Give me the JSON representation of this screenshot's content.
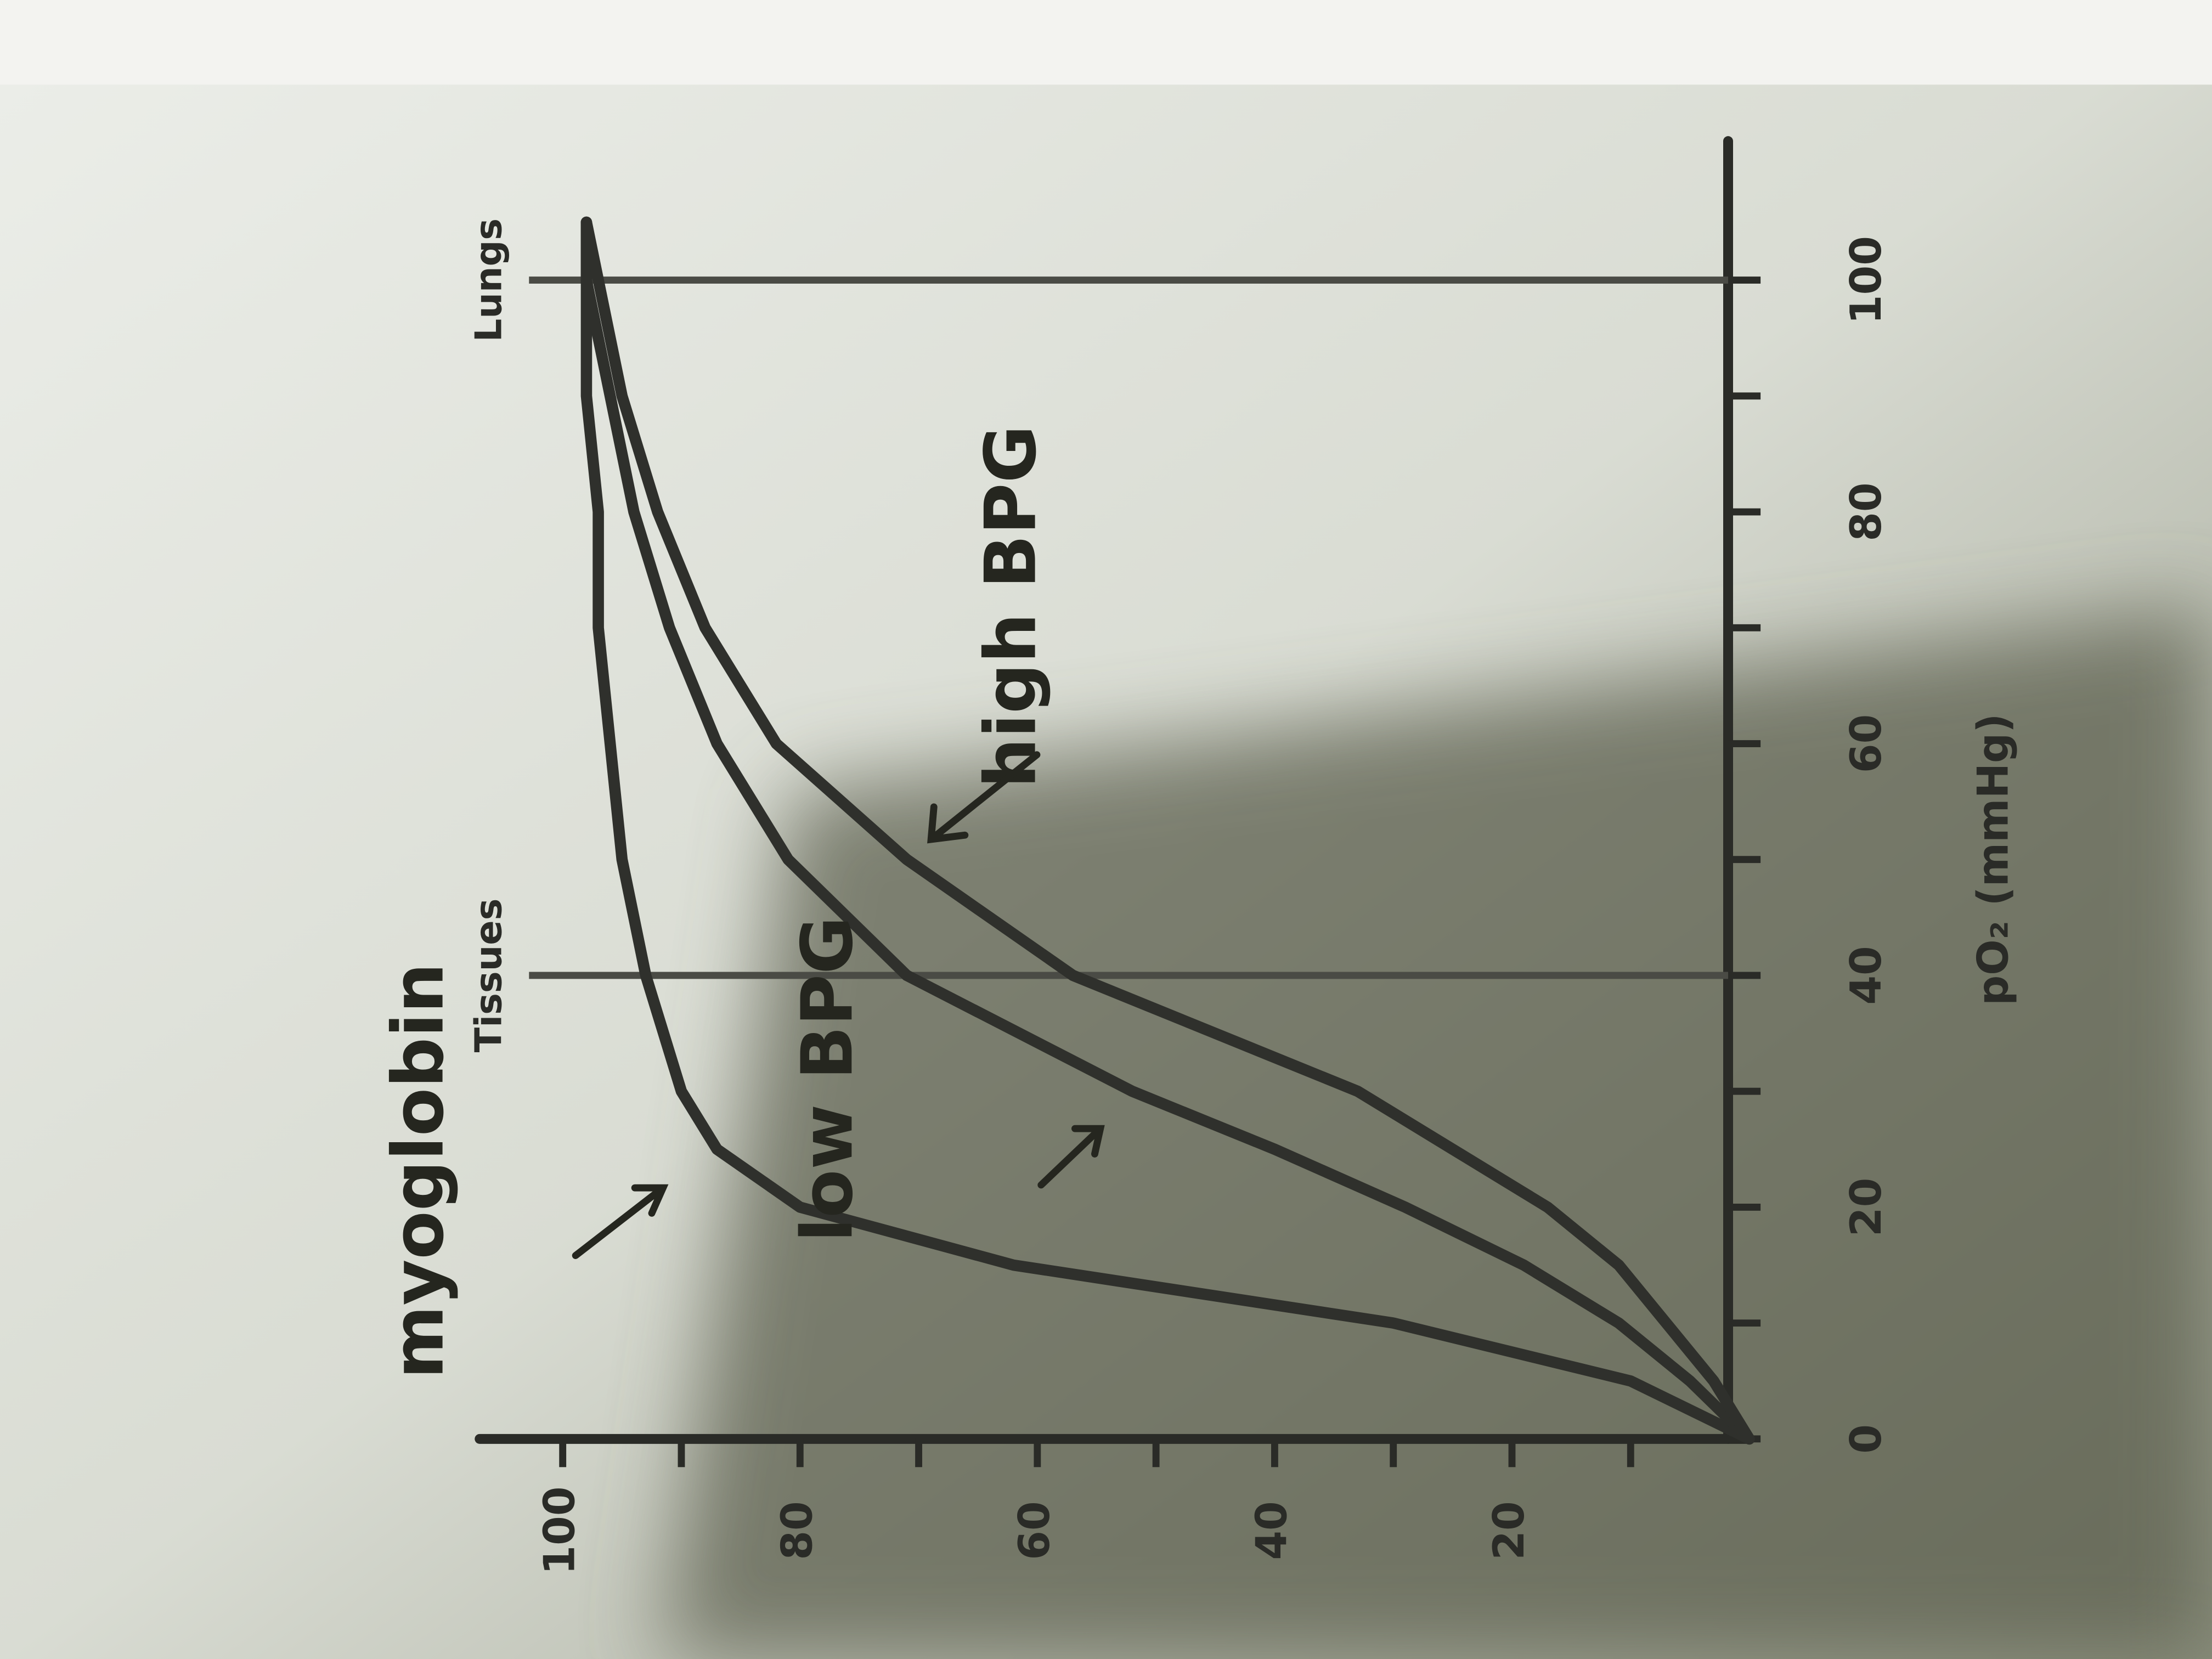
{
  "chart_data": {
    "type": "line",
    "x_label": "pO₂ (mmHg)",
    "x": [
      0,
      5,
      10,
      15,
      20,
      25,
      30,
      40,
      50,
      60,
      70,
      80,
      90,
      100,
      105
    ],
    "series": [
      {
        "name": "myoglobin",
        "color": "#2f302c",
        "values": [
          0,
          10,
          30,
          62,
          80,
          87,
          90,
          93,
          95,
          96,
          97,
          97,
          98,
          98,
          98
        ]
      },
      {
        "name": "low BPG",
        "color": "#2f302c",
        "values": [
          0,
          5,
          11,
          19,
          29,
          40,
          52,
          71,
          81,
          87,
          91,
          94,
          96,
          98,
          98
        ]
      },
      {
        "name": "high BPG",
        "color": "#2f302c",
        "values": [
          0,
          3,
          7,
          11,
          17,
          25,
          33,
          57,
          71,
          82,
          88,
          92,
          95,
          97,
          98
        ]
      }
    ],
    "xlim": [
      0,
      112
    ],
    "ylim": [
      0,
      107
    ],
    "xticks": [
      0,
      20,
      40,
      60,
      80,
      100
    ],
    "xminor_ticks": [
      10,
      30,
      50,
      70,
      90
    ],
    "yticks": [
      20,
      40,
      60,
      80,
      100
    ],
    "yminor_ticks": [
      10,
      30,
      50,
      70,
      90
    ],
    "annotations": [
      {
        "text": "Tissues",
        "x": 40
      },
      {
        "text": "Lungs",
        "x": 100
      }
    ]
  }
}
